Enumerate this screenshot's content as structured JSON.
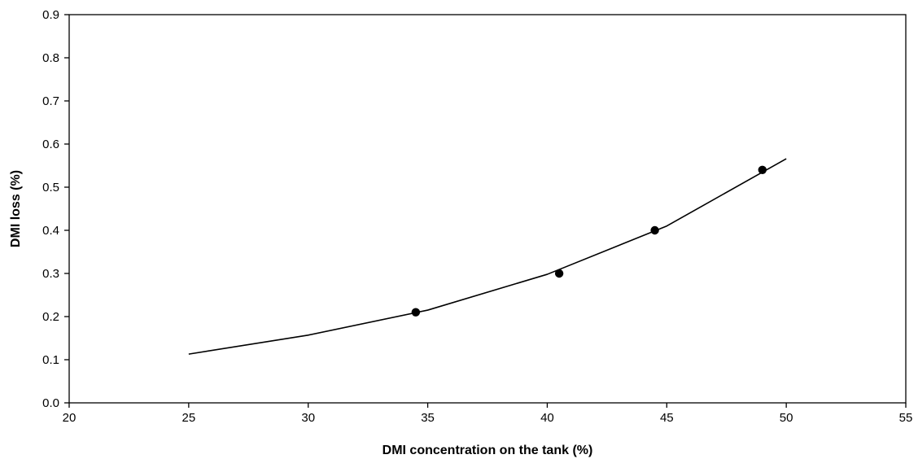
{
  "chart_data": {
    "type": "scatter",
    "title": "",
    "xlabel": "DMI concentration on the tank (%)",
    "ylabel": "DMI loss (%)",
    "xlim": [
      20,
      55
    ],
    "ylim": [
      0,
      0.9
    ],
    "xticks": [
      20,
      25,
      30,
      35,
      40,
      45,
      50,
      55
    ],
    "yticks": [
      0.0,
      0.1,
      0.2,
      0.3,
      0.4,
      0.5,
      0.6,
      0.7,
      0.8,
      0.9
    ],
    "xtick_labels": [
      "20",
      "25",
      "30",
      "35",
      "40",
      "45",
      "50",
      "55"
    ],
    "ytick_labels": [
      "0.0",
      "0.1",
      "0.2",
      "0.3",
      "0.4",
      "0.5",
      "0.6",
      "0.7",
      "0.8",
      "0.9"
    ],
    "grid": false,
    "legend": "none",
    "series": [
      {
        "kind": "points",
        "marker": "filled-circle",
        "x": [
          34.5,
          40.5,
          44.5,
          49
        ],
        "y": [
          0.21,
          0.3,
          0.4,
          0.54
        ]
      },
      {
        "kind": "line",
        "x": [
          25,
          30,
          35,
          40,
          45,
          50
        ],
        "y": [
          0.113,
          0.157,
          0.215,
          0.298,
          0.41,
          0.566
        ]
      }
    ],
    "colors": {
      "axis": "#000000",
      "line": "#000000",
      "marker": "#000000",
      "background": "#ffffff"
    }
  }
}
